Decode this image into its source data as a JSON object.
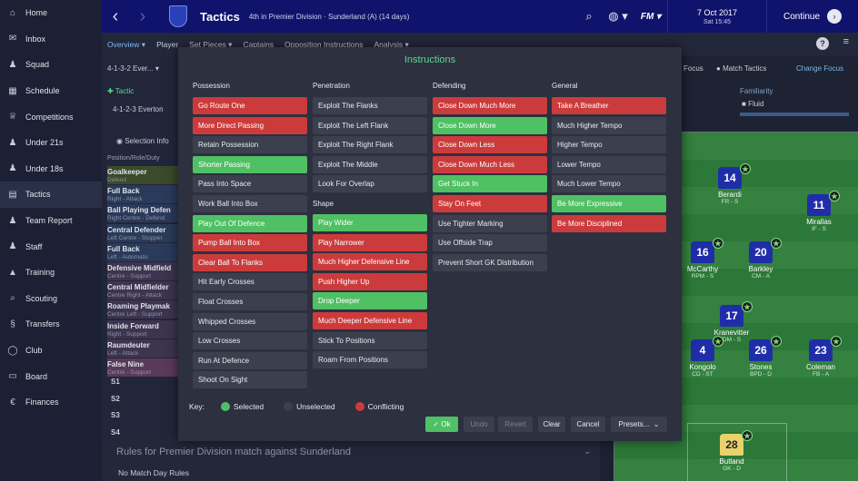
{
  "sidebar": {
    "items": [
      {
        "label": "Home",
        "icon": "home-icon",
        "glyph": "⌂"
      },
      {
        "label": "Inbox",
        "icon": "inbox-icon",
        "glyph": "✉"
      },
      {
        "label": "Squad",
        "icon": "squad-icon",
        "glyph": "♟"
      },
      {
        "label": "Schedule",
        "icon": "schedule-icon",
        "glyph": "▦"
      },
      {
        "label": "Competitions",
        "icon": "trophy-icon",
        "glyph": "♕"
      },
      {
        "label": "Under 21s",
        "icon": "under21-icon",
        "glyph": "♟"
      },
      {
        "label": "Under 18s",
        "icon": "under18-icon",
        "glyph": "♟"
      },
      {
        "label": "Tactics",
        "icon": "tactics-icon",
        "glyph": "▤"
      },
      {
        "label": "Team Report",
        "icon": "team-report-icon",
        "glyph": "♟"
      },
      {
        "label": "Staff",
        "icon": "staff-icon",
        "glyph": "♟"
      },
      {
        "label": "Training",
        "icon": "training-icon",
        "glyph": "▲"
      },
      {
        "label": "Scouting",
        "icon": "scouting-icon",
        "glyph": "⌕"
      },
      {
        "label": "Transfers",
        "icon": "transfers-icon",
        "glyph": "§"
      },
      {
        "label": "Club",
        "icon": "club-icon",
        "glyph": "◯"
      },
      {
        "label": "Board",
        "icon": "board-icon",
        "glyph": "▭"
      },
      {
        "label": "Finances",
        "icon": "finances-icon",
        "glyph": "€"
      }
    ]
  },
  "header": {
    "title": "Tactics",
    "subtitle": "4th in Premier Division · Sunderland (A) (14 days)",
    "fm_logo": "FM",
    "date": "7 Oct 2017",
    "time": "Sat 15:45",
    "continue_label": "Continue"
  },
  "subtabs": [
    "Overview",
    "Player",
    "Set Pieces",
    "Captains",
    "Opposition Instructions",
    "Analysis"
  ],
  "background": {
    "formation": "4-1-3-2 Ever...",
    "tactic_label": "Tactic",
    "tactic_name": "4-1-2-3 Everton",
    "selection_info": "Selection Info",
    "position_header": "Position/Role/Duty",
    "roles": [
      {
        "name": "Goalkeeper",
        "sub": "Defend",
        "color": "#3b4a2a"
      },
      {
        "name": "Full Back",
        "sub": "Right - Attack",
        "color": "#2a3a5a"
      },
      {
        "name": "Ball Playing Defen",
        "sub": "Right Centre - Defend",
        "color": "#2a3a5a"
      },
      {
        "name": "Central Defender",
        "sub": "Left Centre - Stopper",
        "color": "#2a3a5a"
      },
      {
        "name": "Full Back",
        "sub": "Left - Automatic",
        "color": "#2a3a5a"
      },
      {
        "name": "Defensive Midfield",
        "sub": "Centre - Support",
        "color": "#3d3450"
      },
      {
        "name": "Central Midfielder",
        "sub": "Centre Right - Attack",
        "color": "#3d3450"
      },
      {
        "name": "Roaming Playmak",
        "sub": "Centre Left - Support",
        "color": "#3d3450"
      },
      {
        "name": "Inside Forward",
        "sub": "Right - Support",
        "color": "#3d3450"
      },
      {
        "name": "Raumdeuter",
        "sub": "Left - Attack",
        "color": "#3d3450"
      },
      {
        "name": "False Nine",
        "sub": "Centre - Support",
        "color": "#5a3a5a"
      }
    ],
    "subs": [
      "S1",
      "S2",
      "S3",
      "S4"
    ],
    "focus_label": "Focus",
    "match_tactics": "Match Tactics",
    "change_focus": "Change Focus",
    "familiarity_label": "Familiarity",
    "fluid_label": "Fluid",
    "rules_text": "Rules for Premier Division match against Sunderland",
    "no_rules": "No Match Day Rules"
  },
  "pitch_players": [
    {
      "num": "14",
      "name": "Berardi",
      "role": "FR - S",
      "gk": false
    },
    {
      "num": "11",
      "name": "Mirallas",
      "role": "IF - S",
      "gk": false
    },
    {
      "num": "16",
      "name": "McCarthy",
      "role": "RPM - S",
      "gk": false
    },
    {
      "num": "20",
      "name": "Barkley",
      "role": "CM - A",
      "gk": false
    },
    {
      "num": "17",
      "name": "Kranevitter",
      "role": "DM - S",
      "gk": false
    },
    {
      "num": "4",
      "name": "Kongolo",
      "role": "CD - ST",
      "gk": false
    },
    {
      "num": "26",
      "name": "Stones",
      "role": "BPD - D",
      "gk": false
    },
    {
      "num": "23",
      "name": "Coleman",
      "role": "FB - A",
      "gk": false
    },
    {
      "num": "28",
      "name": "Butland",
      "role": "GK - D",
      "gk": true
    }
  ],
  "modal": {
    "title": "Instructions",
    "columns": [
      {
        "heading": "Possession",
        "items": [
          {
            "label": "Go Route One",
            "state": "conflicting"
          },
          {
            "label": "More Direct Passing",
            "state": "conflicting"
          },
          {
            "label": "Retain Possession",
            "state": "unselected"
          },
          {
            "label": "Shorter Passing",
            "state": "selected"
          },
          {
            "label": "Pass Into Space",
            "state": "unselected"
          },
          {
            "label": "Work Ball Into Box",
            "state": "unselected"
          },
          {
            "label": "Play Out Of Defence",
            "state": "selected"
          },
          {
            "label": "Pump Ball Into Box",
            "state": "conflicting"
          },
          {
            "label": "Clear Ball To Flanks",
            "state": "conflicting"
          },
          {
            "label": "Hit Early Crosses",
            "state": "unselected"
          },
          {
            "label": "Float Crosses",
            "state": "unselected"
          },
          {
            "label": "Whipped Crosses",
            "state": "unselected"
          },
          {
            "label": "Low Crosses",
            "state": "unselected"
          },
          {
            "label": "Run At Defence",
            "state": "unselected"
          },
          {
            "label": "Shoot On Sight",
            "state": "unselected"
          }
        ]
      },
      {
        "heading": "Penetration",
        "items": [
          {
            "label": "Exploit The Flanks",
            "state": "unselected"
          },
          {
            "label": "Exploit The Left Flank",
            "state": "unselected"
          },
          {
            "label": "Exploit The Right Flank",
            "state": "unselected"
          },
          {
            "label": "Exploit The Middle",
            "state": "unselected"
          },
          {
            "label": "Look For Overlap",
            "state": "unselected"
          }
        ],
        "shape_heading": "Shape",
        "shape_items": [
          {
            "label": "Play Wider",
            "state": "selected"
          },
          {
            "label": "Play Narrower",
            "state": "conflicting"
          },
          {
            "label": "Much Higher Defensive Line",
            "state": "conflicting"
          },
          {
            "label": "Push Higher Up",
            "state": "conflicting"
          },
          {
            "label": "Drop Deeper",
            "state": "selected"
          },
          {
            "label": "Much Deeper Defensive Line",
            "state": "conflicting"
          },
          {
            "label": "Stick To Positions",
            "state": "unselected"
          },
          {
            "label": "Roam From Positions",
            "state": "unselected"
          }
        ]
      },
      {
        "heading": "Defending",
        "items": [
          {
            "label": "Close Down Much More",
            "state": "conflicting"
          },
          {
            "label": "Close Down More",
            "state": "selected"
          },
          {
            "label": "Close Down Less",
            "state": "conflicting"
          },
          {
            "label": "Close Down Much Less",
            "state": "conflicting"
          },
          {
            "label": "Get Stuck In",
            "state": "selected"
          },
          {
            "label": "Stay On Feet",
            "state": "conflicting"
          },
          {
            "label": "Use Tighter Marking",
            "state": "unselected"
          },
          {
            "label": "Use Offside Trap",
            "state": "unselected"
          },
          {
            "label": "Prevent Short GK Distribution",
            "state": "unselected"
          }
        ]
      },
      {
        "heading": "General",
        "items": [
          {
            "label": "Take A Breather",
            "state": "conflicting"
          },
          {
            "label": "Much Higher Tempo",
            "state": "unselected"
          },
          {
            "label": "Higher Tempo",
            "state": "unselected"
          },
          {
            "label": "Lower Tempo",
            "state": "unselected"
          },
          {
            "label": "Much Lower Tempo",
            "state": "unselected"
          },
          {
            "label": "Be More Expressive",
            "state": "selected"
          },
          {
            "label": "Be More Disciplined",
            "state": "conflicting"
          }
        ]
      }
    ],
    "key": {
      "label": "Key:",
      "selected": "Selected",
      "unselected": "Unselected",
      "conflicting": "Conflicting"
    },
    "buttons": {
      "ok": "Ok",
      "undo": "Undo",
      "revert": "Revert",
      "clear": "Clear",
      "cancel": "Cancel",
      "presets": "Presets..."
    }
  },
  "colors": {
    "selected": "#4fc063",
    "unselected": "#3b3f4e",
    "conflicting": "#cc3b3b",
    "accent": "#5fd78b"
  }
}
